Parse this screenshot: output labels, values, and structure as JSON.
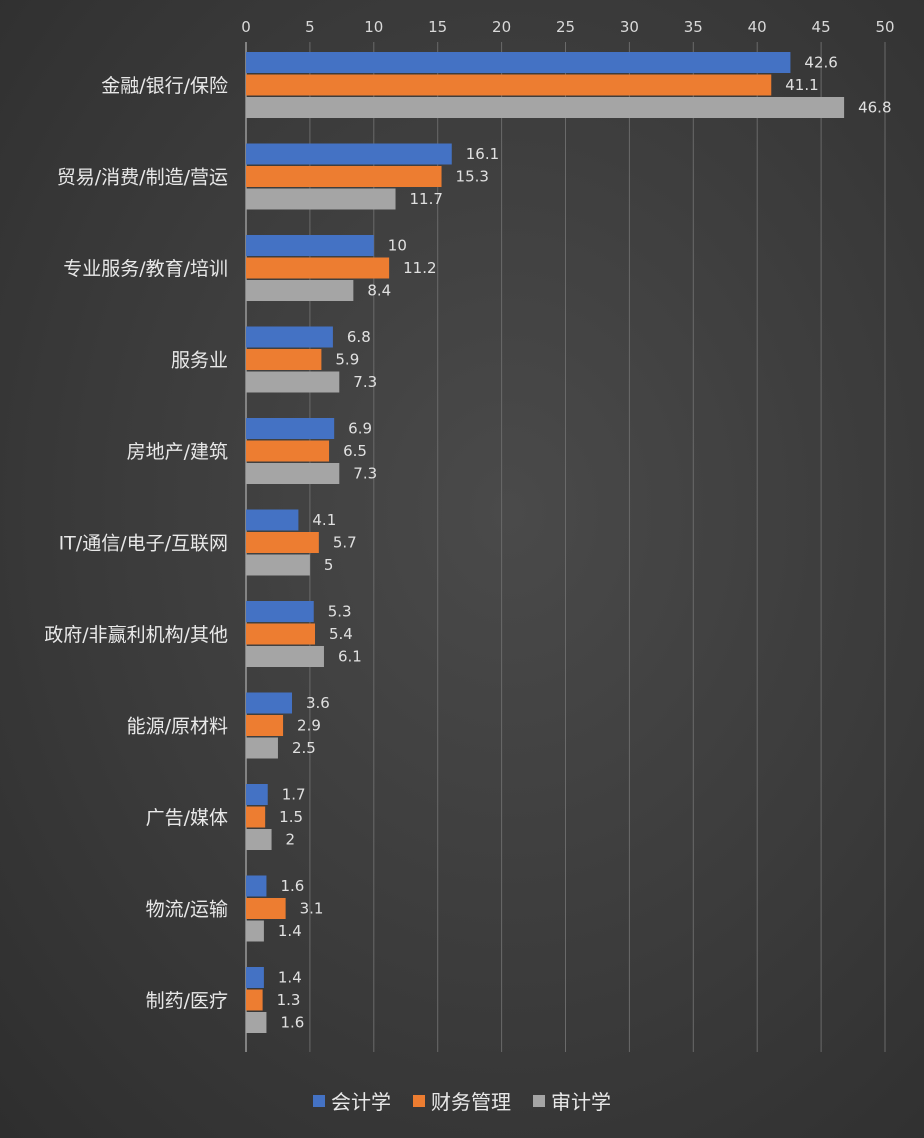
{
  "chart_data": {
    "type": "bar",
    "orientation": "horizontal",
    "categories": [
      "金融/银行/保险",
      "贸易/消费/制造/营运",
      "专业服务/教育/培训",
      "服务业",
      "房地产/建筑",
      "IT/通信/电子/互联网",
      "政府/非赢利机构/其他",
      "能源/原材料",
      "广告/媒体",
      "物流/运输",
      "制药/医疗"
    ],
    "series": [
      {
        "name": "会计学",
        "color": "#4472c4",
        "values": [
          42.6,
          16.1,
          10,
          6.8,
          6.9,
          4.1,
          5.3,
          3.6,
          1.7,
          1.6,
          1.4
        ]
      },
      {
        "name": "财务管理",
        "color": "#ed7d31",
        "values": [
          41.1,
          15.3,
          11.2,
          5.9,
          6.5,
          5.7,
          5.4,
          2.9,
          1.5,
          3.1,
          1.3
        ]
      },
      {
        "name": "审计学",
        "color": "#a5a5a5",
        "values": [
          46.8,
          11.7,
          8.4,
          7.3,
          7.3,
          5,
          6.1,
          2.5,
          2,
          1.4,
          1.6
        ]
      }
    ],
    "xlim": [
      0,
      50
    ],
    "x_ticks": [
      "0",
      "5",
      "10",
      "15",
      "20",
      "25",
      "30",
      "35",
      "40",
      "45",
      "50"
    ],
    "grid": true,
    "axis_position": "top",
    "legend_position": "bottom",
    "title": "",
    "xlabel": "",
    "ylabel": ""
  }
}
